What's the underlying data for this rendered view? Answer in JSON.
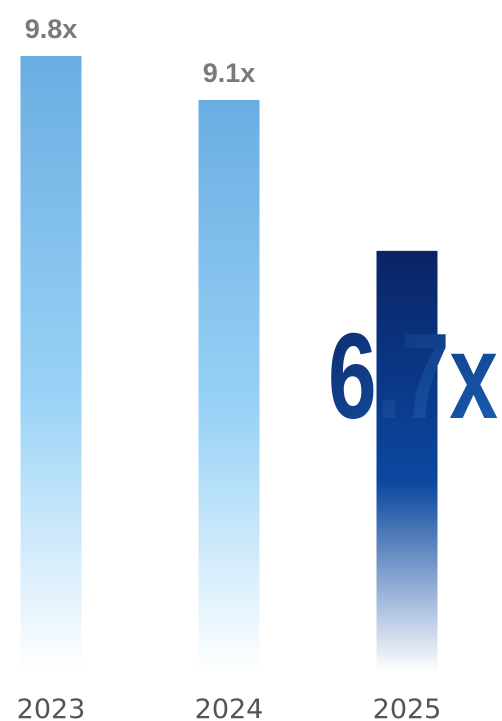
{
  "chart_data": {
    "type": "bar",
    "categories": [
      "2023",
      "2024",
      "2025"
    ],
    "values": [
      9.8,
      9.1,
      6.7
    ],
    "value_labels": [
      "9.8x",
      "9.1x",
      "6.7x"
    ],
    "highlight_index": 2,
    "ylim": [
      0,
      9.8
    ],
    "grid": false,
    "legend": "none"
  },
  "colors": {
    "bar_top": "#6aade2",
    "bar_mid": "#99d2f6",
    "bar_fade": "#ffffff",
    "highlight_top": "#0a2466",
    "highlight_mid": "#0b48a0",
    "label_gray": "#7a7a7a",
    "highlight_label_dark": "#0b2a6d",
    "highlight_label_light": "#1a5fb4",
    "tick_text": "#555555"
  }
}
